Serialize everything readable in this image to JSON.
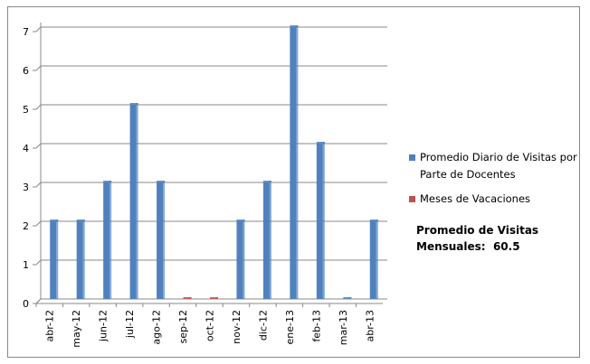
{
  "chart_data": {
    "type": "bar",
    "categories": [
      "abr-12",
      "may-12",
      "jun-12",
      "jul-12",
      "ago-12",
      "sep-12",
      "oct-12",
      "nov-12",
      "dic-12",
      "ene-13",
      "feb-13",
      "mar-13",
      "abr-13"
    ],
    "series": [
      {
        "name": "Promedio Diario de Visitas por Parte de Docentes",
        "color": "#4f81bd",
        "values": [
          2,
          2,
          3,
          5,
          3,
          null,
          null,
          2,
          3,
          7,
          4,
          0,
          2
        ]
      },
      {
        "name": "Meses de Vacaciones",
        "color": "#c0504d",
        "values": [
          null,
          null,
          null,
          null,
          null,
          0,
          0,
          null,
          null,
          null,
          null,
          null,
          null
        ]
      }
    ],
    "ylim": [
      0,
      7
    ],
    "yticks": [
      0,
      1,
      2,
      3,
      4,
      5,
      6,
      7
    ],
    "grid": true,
    "annotation": [
      "Promedio de Visitas",
      "Mensuales:  60.5"
    ]
  }
}
